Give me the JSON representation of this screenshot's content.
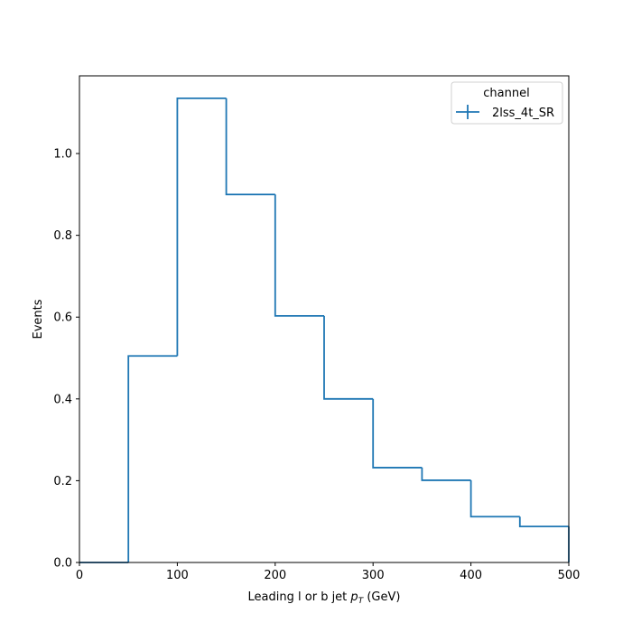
{
  "chart_data": {
    "type": "histogram-step",
    "xlabel_prefix": "Leading l or b jet ",
    "xlabel_var": "p",
    "xlabel_sub": "T",
    "xlabel_suffix": " (GeV)",
    "ylabel": "Events",
    "xlim": [
      0,
      500
    ],
    "ylim": [
      0,
      1.19
    ],
    "x_ticks": [
      0,
      100,
      200,
      300,
      400,
      500
    ],
    "x_tick_labels": [
      "0",
      "100",
      "200",
      "300",
      "400",
      "500"
    ],
    "y_ticks": [
      0.0,
      0.2,
      0.4,
      0.6,
      0.8,
      1.0
    ],
    "y_tick_labels": [
      "0.0",
      "0.2",
      "0.4",
      "0.6",
      "0.8",
      "1.0"
    ],
    "bin_edges": [
      0,
      50,
      100,
      150,
      200,
      250,
      300,
      350,
      400,
      450,
      500
    ],
    "series": [
      {
        "name": "2lss_4t_SR",
        "color": "#1f77b4",
        "values": [
          0.0,
          0.505,
          1.135,
          0.9,
          0.603,
          0.4,
          0.232,
          0.201,
          0.112,
          0.088
        ]
      }
    ],
    "legend": {
      "title": "channel",
      "placement": "top-right"
    },
    "grid": false
  }
}
